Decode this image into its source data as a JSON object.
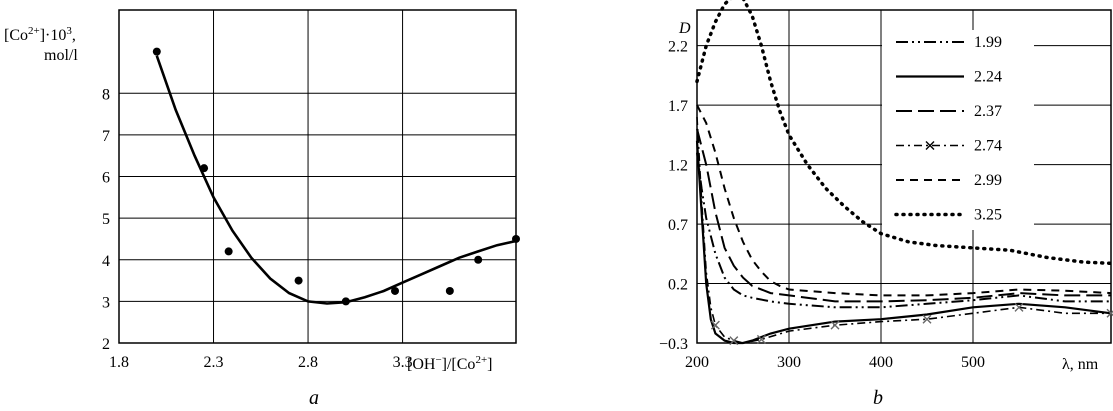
{
  "chart_data": [
    {
      "type": "scatter",
      "panel_label": "a",
      "ylabel_line1": "[Co2+]·103,",
      "ylabel_line2": "mol/l",
      "xlabel": "[OH−]/[Co2+]",
      "xlim": [
        1.8,
        3.9
      ],
      "ylim": [
        2,
        10
      ],
      "x_ticks": [
        "1.8",
        "2.3",
        "2.8",
        "3.3"
      ],
      "y_ticks": [
        "2",
        "3",
        "4",
        "5",
        "6",
        "7",
        "8"
      ],
      "grid": true,
      "points": [
        {
          "x": 2.0,
          "y": 9.0
        },
        {
          "x": 2.25,
          "y": 6.2
        },
        {
          "x": 2.38,
          "y": 4.2
        },
        {
          "x": 2.75,
          "y": 3.5
        },
        {
          "x": 3.0,
          "y": 3.0
        },
        {
          "x": 3.26,
          "y": 3.25
        },
        {
          "x": 3.55,
          "y": 3.25
        },
        {
          "x": 3.7,
          "y": 4.0
        },
        {
          "x": 3.9,
          "y": 4.5
        }
      ],
      "fit_curve": {
        "x": [
          2.0,
          2.1,
          2.2,
          2.3,
          2.4,
          2.5,
          2.6,
          2.7,
          2.8,
          2.9,
          3.0,
          3.1,
          3.2,
          3.3,
          3.4,
          3.5,
          3.6,
          3.7,
          3.8,
          3.9
        ],
        "y": [
          8.9,
          7.6,
          6.5,
          5.5,
          4.7,
          4.05,
          3.55,
          3.2,
          3.0,
          2.95,
          2.98,
          3.1,
          3.25,
          3.45,
          3.65,
          3.85,
          4.05,
          4.2,
          4.35,
          4.45
        ]
      }
    },
    {
      "type": "line",
      "panel_label": "b",
      "ylabel": "D",
      "xlabel": "λ, nm",
      "xlim": [
        200,
        650
      ],
      "ylim": [
        -0.3,
        2.5
      ],
      "x_ticks": [
        "200",
        "300",
        "400",
        "500"
      ],
      "y_ticks": [
        "−0.3",
        "0.2",
        "0.7",
        "1.2",
        "1.7",
        "2.2"
      ],
      "grid": true,
      "legend_position": "top-right",
      "series": [
        {
          "name": "1.99",
          "style": "dash-dot-dot",
          "x": [
            200,
            205,
            210,
            220,
            230,
            240,
            250,
            260,
            280,
            300,
            350,
            400,
            450,
            500,
            550,
            600,
            650
          ],
          "y": [
            1.3,
            1.0,
            0.75,
            0.45,
            0.25,
            0.15,
            0.1,
            0.08,
            0.05,
            0.03,
            0.0,
            0.0,
            0.03,
            0.06,
            0.1,
            0.05,
            0.05
          ]
        },
        {
          "name": "2.24",
          "style": "solid",
          "x": [
            200,
            205,
            210,
            215,
            220,
            230,
            240,
            250,
            260,
            280,
            300,
            350,
            400,
            450,
            500,
            550,
            600,
            650
          ],
          "y": [
            1.4,
            0.8,
            0.2,
            -0.1,
            -0.22,
            -0.28,
            -0.3,
            -0.3,
            -0.28,
            -0.22,
            -0.18,
            -0.12,
            -0.1,
            -0.06,
            0.0,
            0.03,
            0.0,
            -0.05
          ]
        },
        {
          "name": "2.37",
          "style": "long-dash",
          "x": [
            200,
            210,
            220,
            230,
            240,
            250,
            260,
            280,
            300,
            350,
            400,
            450,
            500,
            550,
            600,
            650
          ],
          "y": [
            1.5,
            1.2,
            0.8,
            0.5,
            0.35,
            0.25,
            0.18,
            0.12,
            0.1,
            0.05,
            0.05,
            0.06,
            0.08,
            0.12,
            0.1,
            0.1
          ]
        },
        {
          "name": "2.74",
          "style": "dash-dot-x",
          "x": [
            200,
            205,
            210,
            215,
            220,
            230,
            240,
            250,
            270,
            300,
            350,
            400,
            450,
            500,
            550,
            600,
            650
          ],
          "y": [
            1.6,
            0.9,
            0.3,
            0.0,
            -0.15,
            -0.25,
            -0.28,
            -0.3,
            -0.27,
            -0.2,
            -0.15,
            -0.12,
            -0.1,
            -0.05,
            0.0,
            -0.05,
            -0.05
          ]
        },
        {
          "name": "2.99",
          "style": "dash",
          "x": [
            200,
            210,
            220,
            230,
            240,
            250,
            260,
            270,
            280,
            290,
            300,
            350,
            400,
            450,
            500,
            550,
            600,
            650
          ],
          "y": [
            1.7,
            1.55,
            1.3,
            1.0,
            0.75,
            0.55,
            0.4,
            0.3,
            0.22,
            0.18,
            0.15,
            0.12,
            0.1,
            0.1,
            0.12,
            0.15,
            0.14,
            0.12
          ]
        },
        {
          "name": "3.25",
          "style": "dotted",
          "x": [
            200,
            210,
            220,
            230,
            240,
            250,
            260,
            270,
            280,
            290,
            300,
            320,
            340,
            360,
            380,
            400,
            430,
            460,
            500,
            540,
            580,
            620,
            650
          ],
          "y": [
            1.9,
            2.2,
            2.4,
            2.55,
            2.62,
            2.6,
            2.45,
            2.2,
            1.9,
            1.65,
            1.45,
            1.2,
            1.0,
            0.85,
            0.72,
            0.62,
            0.55,
            0.52,
            0.5,
            0.48,
            0.42,
            0.38,
            0.37
          ]
        }
      ]
    }
  ],
  "captions": {
    "a": "a",
    "b": "b"
  }
}
